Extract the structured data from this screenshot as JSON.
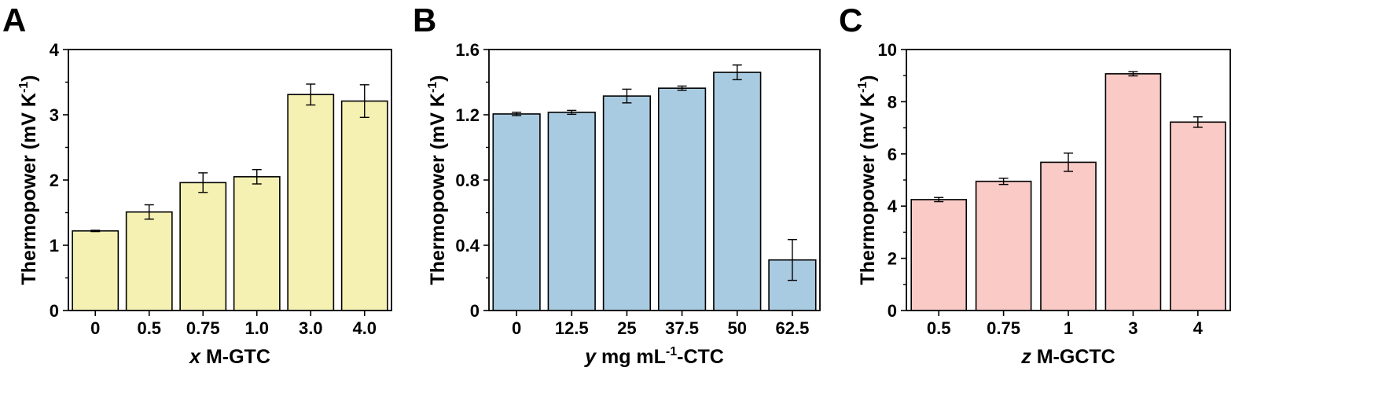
{
  "panels": [
    {
      "letter": "A",
      "chart_data": {
        "type": "bar",
        "categories": [
          "0",
          "0.5",
          "0.75",
          "1.0",
          "3.0",
          "4.0"
        ],
        "values": [
          1.22,
          1.51,
          1.96,
          2.05,
          3.31,
          3.21
        ],
        "errors": [
          0.01,
          0.11,
          0.15,
          0.11,
          0.16,
          0.25
        ],
        "ylim": [
          0,
          4
        ],
        "yticks": [
          "0",
          "1",
          "2",
          "3",
          "4"
        ],
        "xlabel_italic": "x",
        "xlabel": " M-GTC",
        "ylabel": "Thermopower (mV K",
        "ylabel_sup": "-1",
        "ylabel_end": ")",
        "bar_color": "#f5f1b3",
        "grid": false
      }
    },
    {
      "letter": "B",
      "chart_data": {
        "type": "bar",
        "categories": [
          "0",
          "12.5",
          "25",
          "37.5",
          "50",
          "62.5"
        ],
        "values": [
          1.205,
          1.215,
          1.315,
          1.363,
          1.46,
          0.31
        ],
        "errors": [
          0.01,
          0.012,
          0.042,
          0.013,
          0.045,
          0.125
        ],
        "ylim": [
          0,
          1.6
        ],
        "yticks": [
          "0",
          "0.4",
          "0.8",
          "1.2",
          "1.6"
        ],
        "xlabel_italic": "y",
        "xlabel": " mg mL",
        "xlabel_sup": "-1",
        "xlabel_end": "-CTC",
        "ylabel": "Thermopower (mV K",
        "ylabel_sup": "-1",
        "ylabel_end": ")",
        "bar_color": "#a9cbe1",
        "grid": false
      }
    },
    {
      "letter": "C",
      "chart_data": {
        "type": "bar",
        "categories": [
          "0.5",
          "0.75",
          "1",
          "3",
          "4"
        ],
        "values": [
          4.25,
          4.95,
          5.68,
          9.07,
          7.22
        ],
        "errors": [
          0.08,
          0.12,
          0.35,
          0.08,
          0.2
        ],
        "ylim": [
          0,
          10
        ],
        "yticks": [
          "0",
          "2",
          "4",
          "6",
          "8",
          "10"
        ],
        "xlabel_italic": "z",
        "xlabel": " M-GCTC",
        "ylabel": "Thermopower (mV K",
        "ylabel_sup": "-1",
        "ylabel_end": ")",
        "bar_color": "#f9cac6",
        "grid": false
      }
    }
  ]
}
